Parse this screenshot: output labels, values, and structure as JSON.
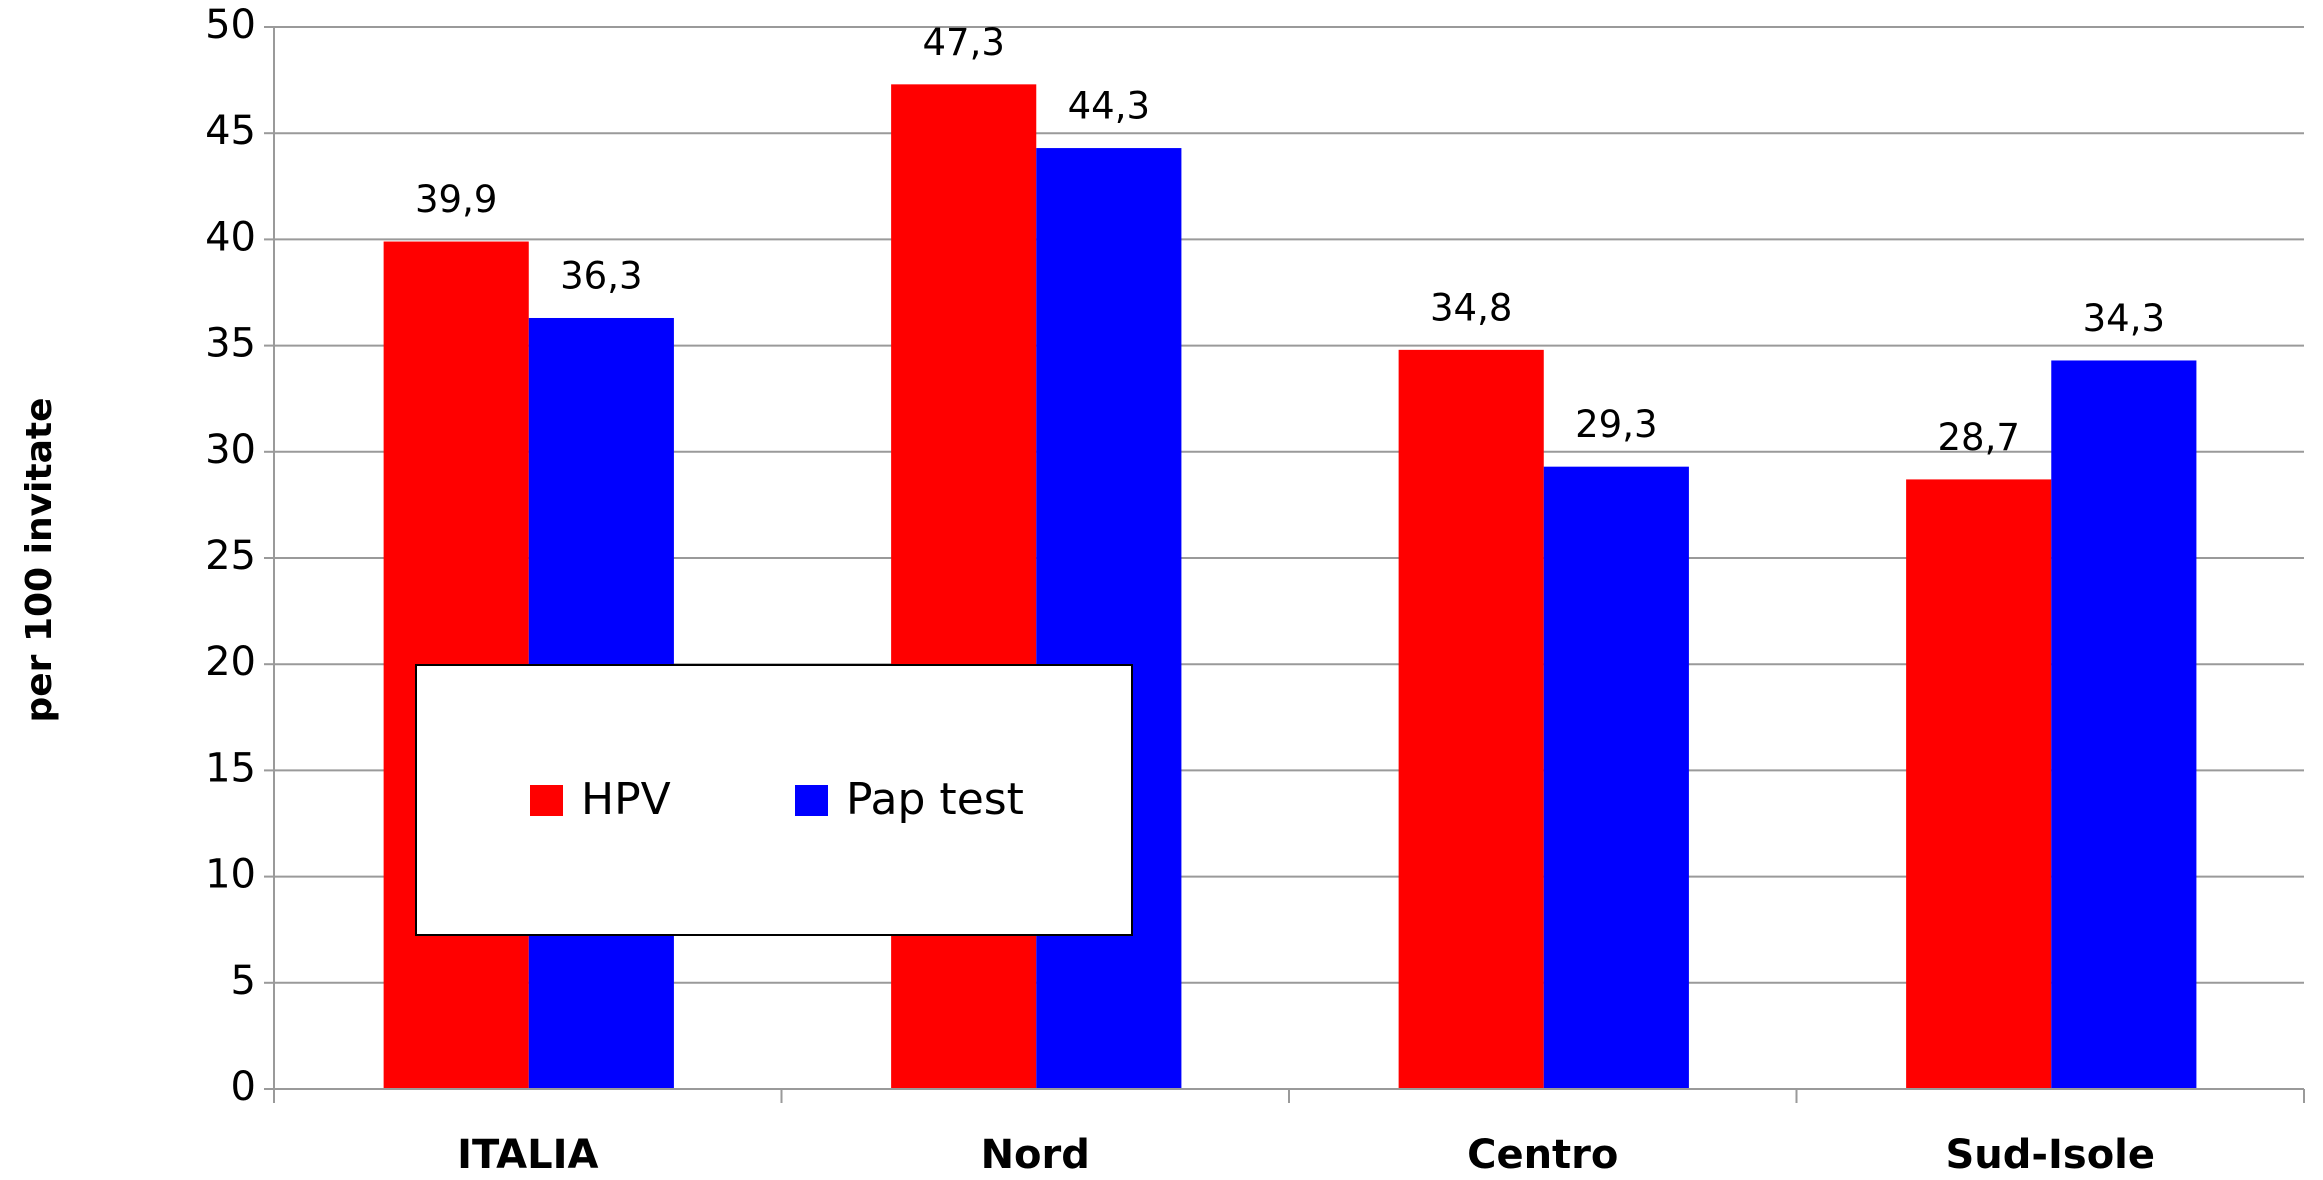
{
  "chart_data": {
    "type": "bar",
    "y_label": "per 100 invitate",
    "categories": [
      "ITALIA",
      "Nord",
      "Centro",
      "Sud-Isole"
    ],
    "series": [
      {
        "name": "HPV",
        "color": "#ff0000",
        "values": [
          39.9,
          47.3,
          34.8,
          28.7
        ],
        "value_labels": [
          "39,9",
          "47,3",
          "34,8",
          "28,7"
        ]
      },
      {
        "name": "Pap test",
        "color": "#0000ff",
        "values": [
          36.3,
          44.3,
          29.3,
          34.3
        ],
        "value_labels": [
          "36,3",
          "44,3",
          "29,3",
          "34,3"
        ]
      }
    ],
    "ylim": [
      0,
      50
    ],
    "yticks": [
      0,
      5,
      10,
      15,
      20,
      25,
      30,
      35,
      40,
      45,
      50
    ],
    "grid": true
  }
}
